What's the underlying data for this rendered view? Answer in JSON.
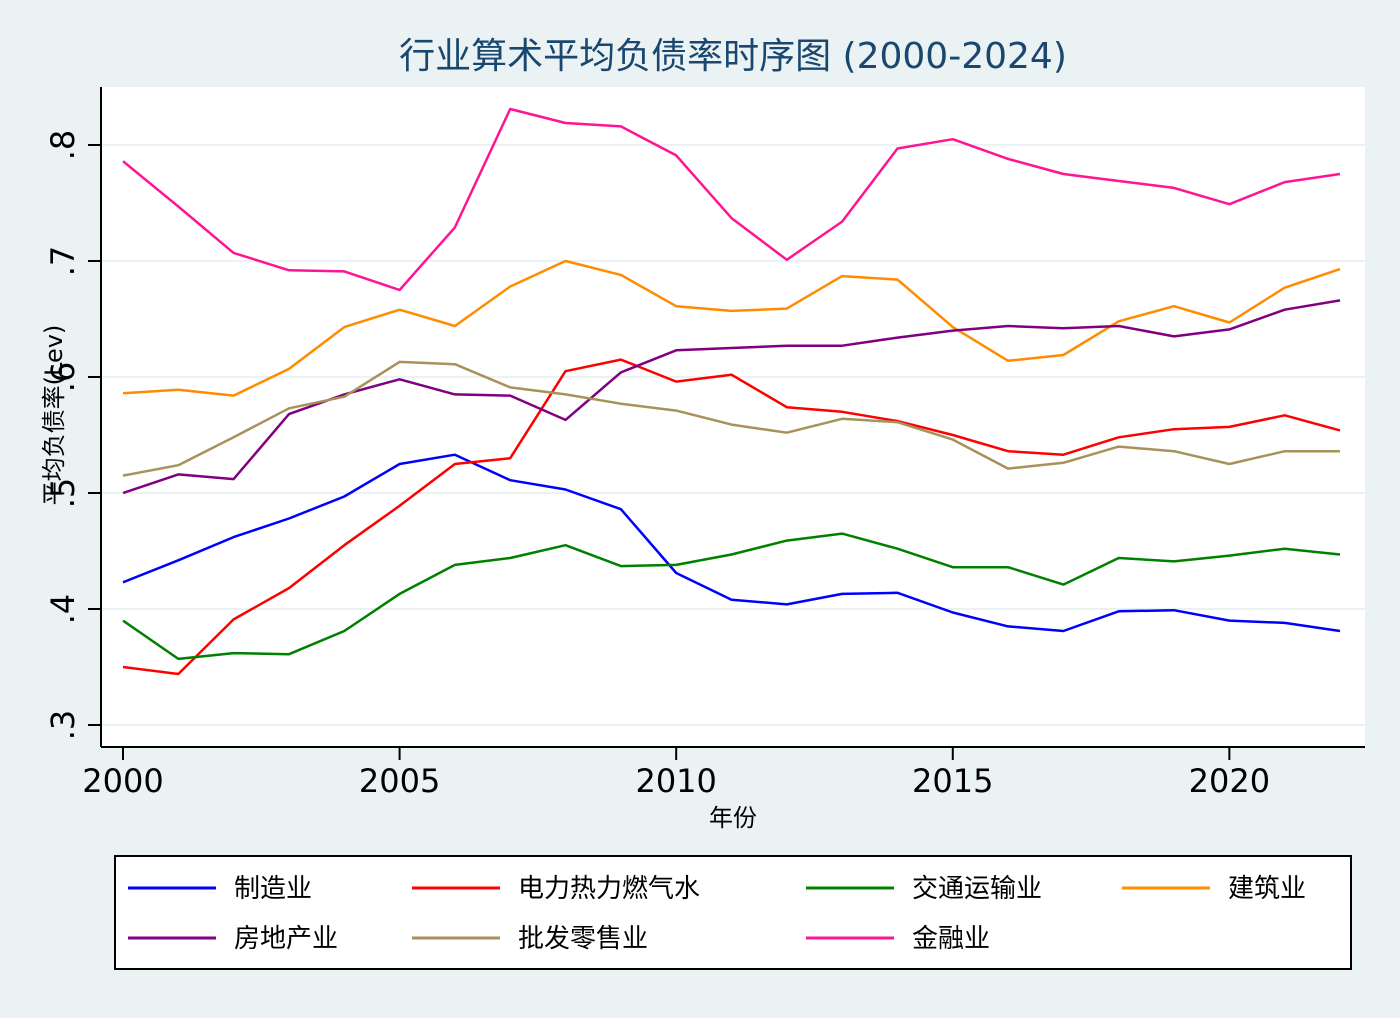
{
  "chart_data": {
    "type": "line",
    "title": "行业算术平均负债率时序图 (2000-2024)",
    "xlabel": "年份",
    "ylabel": "平均负债率(Lev)",
    "xlim": [
      2000,
      2022
    ],
    "ylim": [
      0.3,
      0.85
    ],
    "x_ticks": [
      2000,
      2005,
      2010,
      2015,
      2020
    ],
    "y_ticks": [
      0.3,
      0.4,
      0.5,
      0.6,
      0.7,
      0.8
    ],
    "y_tick_labels": [
      ".3",
      ".4",
      ".5",
      ".6",
      ".7",
      ".8"
    ],
    "grid": true,
    "legend_position": "bottom",
    "x": [
      2000,
      2001,
      2002,
      2003,
      2004,
      2005,
      2006,
      2007,
      2008,
      2009,
      2010,
      2011,
      2012,
      2013,
      2014,
      2015,
      2016,
      2017,
      2018,
      2019,
      2020,
      2021,
      2022
    ],
    "series": [
      {
        "name": "制造业",
        "color": "#0000ff",
        "values": [
          0.423,
          0.442,
          0.462,
          0.478,
          0.497,
          0.525,
          0.533,
          0.511,
          0.503,
          0.486,
          0.431,
          0.408,
          0.404,
          0.413,
          0.414,
          0.397,
          0.385,
          0.381,
          0.398,
          0.399,
          0.39,
          0.388,
          0.381
        ]
      },
      {
        "name": "电力热力燃气水",
        "color": "#ff0000",
        "values": [
          0.35,
          0.344,
          0.391,
          0.418,
          0.455,
          0.489,
          0.525,
          0.53,
          0.605,
          0.615,
          0.596,
          0.602,
          0.574,
          0.57,
          0.562,
          0.55,
          0.536,
          0.533,
          0.548,
          0.555,
          0.557,
          0.567,
          0.554
        ]
      },
      {
        "name": "交通运输业",
        "color": "#008000",
        "values": [
          0.39,
          0.357,
          0.362,
          0.361,
          0.381,
          0.413,
          0.438,
          0.444,
          0.455,
          0.437,
          0.438,
          0.447,
          0.459,
          0.465,
          0.452,
          0.436,
          0.436,
          0.421,
          0.444,
          0.441,
          0.446,
          0.452,
          0.447
        ]
      },
      {
        "name": "建筑业",
        "color": "#ff8c00",
        "values": [
          0.586,
          0.589,
          0.584,
          0.607,
          0.643,
          0.658,
          0.644,
          0.678,
          0.7,
          0.688,
          0.661,
          0.657,
          0.659,
          0.687,
          0.684,
          0.643,
          0.614,
          0.619,
          0.648,
          0.661,
          0.647,
          0.677,
          0.693
        ]
      },
      {
        "name": "房地产业",
        "color": "#800080",
        "values": [
          0.5,
          0.516,
          0.512,
          0.568,
          0.585,
          0.598,
          0.585,
          0.584,
          0.563,
          0.604,
          0.623,
          0.625,
          0.627,
          0.627,
          0.634,
          0.64,
          0.644,
          0.642,
          0.644,
          0.635,
          0.641,
          0.658,
          0.666
        ]
      },
      {
        "name": "批发零售业",
        "color": "#a8925a",
        "values": [
          0.515,
          0.524,
          0.548,
          0.573,
          0.583,
          0.613,
          0.611,
          0.591,
          0.585,
          0.577,
          0.571,
          0.559,
          0.552,
          0.564,
          0.561,
          0.546,
          0.521,
          0.526,
          0.54,
          0.536,
          0.525,
          0.536,
          0.536
        ]
      },
      {
        "name": "金融业",
        "color": "#ff1493",
        "values": [
          0.786,
          0.747,
          0.707,
          0.692,
          0.691,
          0.675,
          0.729,
          0.831,
          0.819,
          0.816,
          0.791,
          0.737,
          0.701,
          0.734,
          0.797,
          0.805,
          0.788,
          0.775,
          0.769,
          0.763,
          0.749,
          0.768,
          0.775
        ]
      }
    ]
  }
}
